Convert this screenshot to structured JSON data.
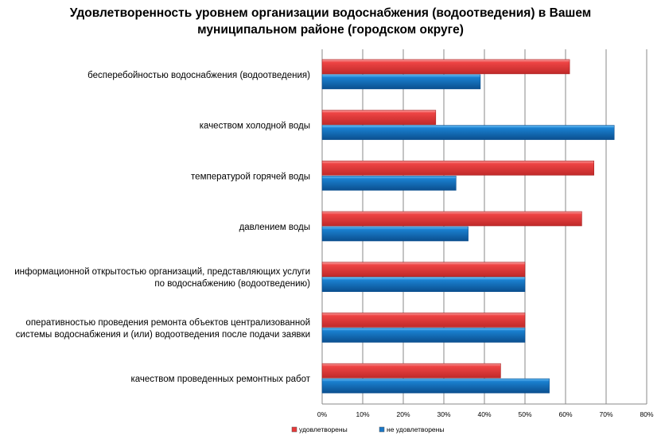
{
  "chart_data": {
    "type": "bar",
    "orientation": "horizontal",
    "title": "Удовлетворенность уровнем организации водоснабжения (водоотведения) в Вашем\nмуниципальном районе (городском округе)",
    "categories": [
      [
        "бесперебойностью водоснабжения (водоотведения)"
      ],
      [
        "качеством холодной воды"
      ],
      [
        "температурой горячей воды"
      ],
      [
        "давлением воды"
      ],
      [
        "информационной открытостью организаций, представляющих услуги",
        "по водоснабжению (водоотведению)"
      ],
      [
        "оперативностью проведения  ремонта объектов централизованной",
        "системы водоснабжения и (или) водоотведения  после подачи заявки"
      ],
      [
        "качеством проведенных ремонтных работ"
      ]
    ],
    "series": [
      {
        "name": "удовлетворены",
        "color": "#e83a3a",
        "values": [
          61,
          28,
          67,
          64,
          50,
          50,
          44
        ]
      },
      {
        "name": "не удовлетворены",
        "color": "#1a78c8",
        "values": [
          39,
          72,
          33,
          36,
          50,
          50,
          56
        ]
      }
    ],
    "xlim": [
      0,
      80
    ],
    "xticks": [
      "0%",
      "10%",
      "20%",
      "30%",
      "40%",
      "50%",
      "60%",
      "70%",
      "80%"
    ],
    "grid": true,
    "legend": "bottom"
  }
}
